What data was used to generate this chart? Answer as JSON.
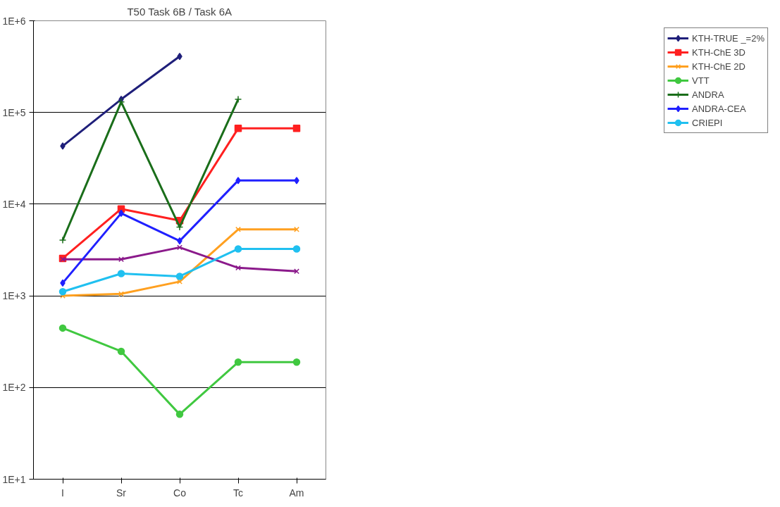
{
  "chart_data": {
    "type": "line",
    "title": "T50 Task 6B / Task 6A",
    "categories": [
      "I",
      "Sr",
      "Co",
      "Tc",
      "Am"
    ],
    "log": "y",
    "ylim": [
      10,
      1000000
    ],
    "yticks": [
      {
        "value": 10,
        "label": "1E+1"
      },
      {
        "value": 100,
        "label": "1E+2"
      },
      {
        "value": 1000,
        "label": "1E+3"
      },
      {
        "value": 10000,
        "label": "1E+4"
      },
      {
        "value": 100000,
        "label": "1E+5"
      },
      {
        "value": 1000000,
        "label": "1E+6"
      }
    ],
    "grid": "y",
    "legend": "top right",
    "series": [
      {
        "name": "KTH-TRUE _=2%",
        "color": "#1f1f7a",
        "marker": "diamond",
        "values": [
          43000,
          139000,
          409000,
          null,
          null
        ]
      },
      {
        "name": "KTH-ChE 3D",
        "color": "#ff2020",
        "marker": "square",
        "values": [
          2560,
          8870,
          6620,
          67000,
          67000
        ]
      },
      {
        "name": "KTH-ChE 2D",
        "color": "#ffa020",
        "marker": "x",
        "values": [
          1000,
          1050,
          1430,
          5300,
          5300
        ]
      },
      {
        "color": "#8b1a8b",
        "marker": "x",
        "values": [
          2500,
          2500,
          3370,
          2020,
          1850
        ]
      },
      {
        "name": "VTT",
        "color": "#40c840",
        "marker": "circle",
        "values": [
          445,
          248,
          51,
          189,
          189
        ]
      },
      {
        "name": "ANDRA",
        "color": "#1a6e1a",
        "marker": "cross",
        "values": [
          4050,
          130000,
          5620,
          139000,
          null
        ]
      },
      {
        "name": "ANDRA-CEA",
        "color": "#2020ff",
        "marker": "diamond",
        "values": [
          1380,
          7950,
          3970,
          18100,
          18100
        ]
      },
      {
        "name": "CRIEPI",
        "color": "#20c0f0",
        "marker": "circle",
        "values": [
          1110,
          1750,
          1630,
          3250,
          3250
        ]
      }
    ]
  }
}
